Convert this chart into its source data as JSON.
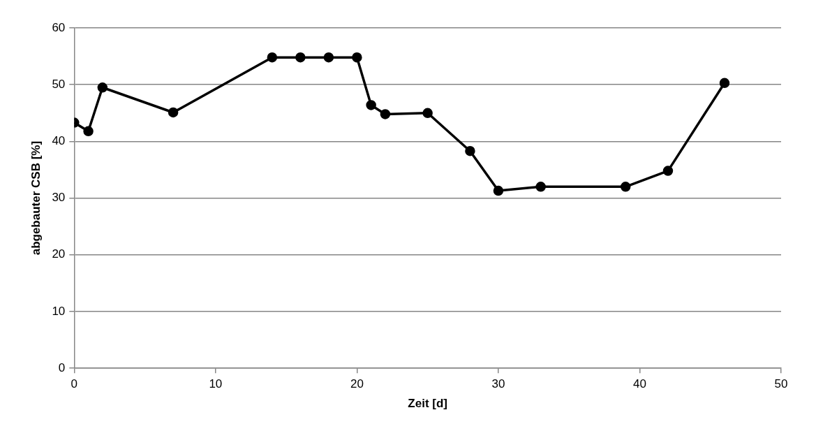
{
  "chart_data": {
    "type": "line",
    "xlabel": "Zeit [d]",
    "ylabel": "abgebauter CSB [%]",
    "x": [
      0,
      1,
      2,
      7,
      14,
      16,
      18,
      20,
      21,
      22,
      25,
      28,
      30,
      33,
      39,
      42,
      46
    ],
    "series": [
      {
        "color": "#000000",
        "values": [
          43.3,
          41.8,
          49.5,
          45.1,
          54.8,
          54.8,
          54.8,
          54.8,
          46.4,
          44.8,
          45.0,
          38.3,
          31.3,
          32.0,
          32.0,
          34.8,
          50.3
        ]
      }
    ],
    "xlim": [
      0,
      50
    ],
    "xticks": [
      0,
      10,
      20,
      30,
      40,
      50
    ],
    "ylim": [
      0,
      60
    ],
    "yticks": [
      0,
      10,
      20,
      30,
      40,
      50,
      60
    ],
    "grid": "y",
    "legend": false,
    "marker": "circle",
    "line_style": "solid"
  }
}
